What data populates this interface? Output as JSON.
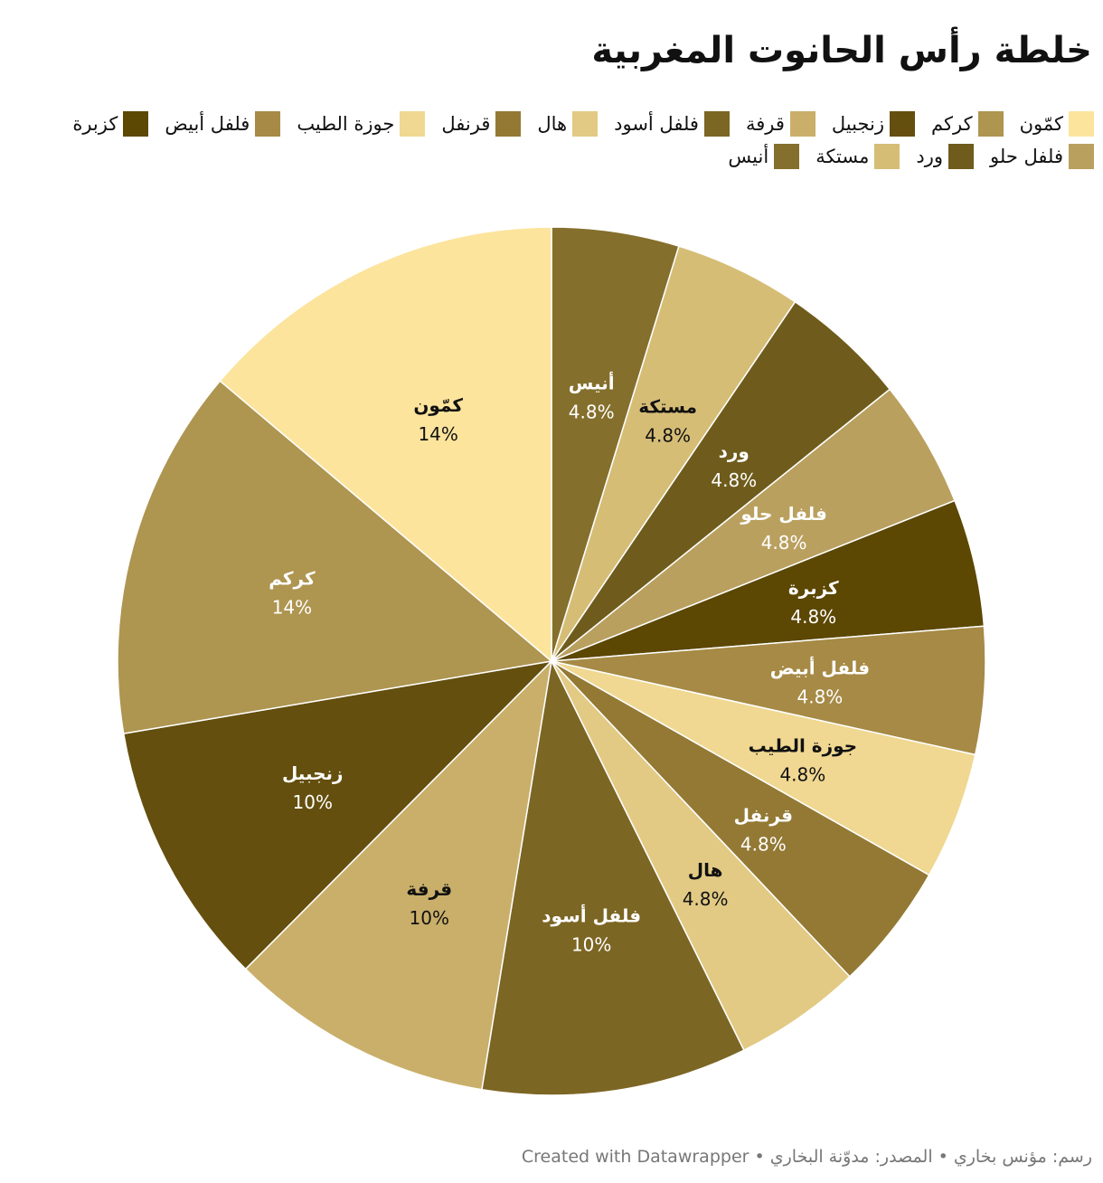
{
  "title": "خلطة رأس الحانوت المغربية",
  "footer": "رسم: مؤنس بخاري • المصدر: مدوّنة البخاري • Created with Datawrapper",
  "chart_data": {
    "type": "pie",
    "title": "خلطة رأس الحانوت المغربية",
    "legend_position": "top",
    "slices": [
      {
        "label": "أنيس",
        "value": 4.8,
        "display": "4.8%",
        "color": "#846f2c",
        "text_color": "#ffffff"
      },
      {
        "label": "مستكة",
        "value": 4.8,
        "display": "4.8%",
        "color": "#d6bd76",
        "text_color": "#111111"
      },
      {
        "label": "ورد",
        "value": 4.8,
        "display": "4.8%",
        "color": "#6f5c1c",
        "text_color": "#ffffff"
      },
      {
        "label": "فلفل حلو",
        "value": 4.8,
        "display": "4.8%",
        "color": "#baa05f",
        "text_color": "#ffffff"
      },
      {
        "label": "كزبرة",
        "value": 4.8,
        "display": "4.8%",
        "color": "#5c4703",
        "text_color": "#ffffff"
      },
      {
        "label": "فلفل أبيض",
        "value": 4.8,
        "display": "4.8%",
        "color": "#a68a45",
        "text_color": "#ffffff"
      },
      {
        "label": "جوزة الطيب",
        "value": 4.8,
        "display": "4.8%",
        "color": "#f0d892",
        "text_color": "#111111"
      },
      {
        "label": "قرنفل",
        "value": 4.8,
        "display": "4.8%",
        "color": "#937934",
        "text_color": "#ffffff"
      },
      {
        "label": "هال",
        "value": 4.8,
        "display": "4.8%",
        "color": "#e2ca84",
        "text_color": "#111111"
      },
      {
        "label": "فلفل أسود",
        "value": 10,
        "display": "10%",
        "color": "#7c6624",
        "text_color": "#ffffff"
      },
      {
        "label": "قرفة",
        "value": 10,
        "display": "10%",
        "color": "#c9af6a",
        "text_color": "#111111"
      },
      {
        "label": "زنجبيل",
        "value": 10,
        "display": "10%",
        "color": "#644f0e",
        "text_color": "#ffffff"
      },
      {
        "label": "كركم",
        "value": 14,
        "display": "14%",
        "color": "#ae9550",
        "text_color": "#ffffff"
      },
      {
        "label": "كمّون",
        "value": 14,
        "display": "14%",
        "color": "#fce49d",
        "text_color": "#111111"
      }
    ],
    "legend": [
      {
        "label": "كمّون",
        "color": "#fce49d"
      },
      {
        "label": "كركم",
        "color": "#ae9550"
      },
      {
        "label": "زنجبيل",
        "color": "#644f0e"
      },
      {
        "label": "قرفة",
        "color": "#c9af6a"
      },
      {
        "label": "فلفل أسود",
        "color": "#7c6624"
      },
      {
        "label": "هال",
        "color": "#e2ca84"
      },
      {
        "label": "قرنفل",
        "color": "#937934"
      },
      {
        "label": "جوزة الطيب",
        "color": "#f0d892"
      },
      {
        "label": "فلفل أبيض",
        "color": "#a68a45"
      },
      {
        "label": "كزبرة",
        "color": "#5c4703"
      },
      {
        "label": "فلفل حلو",
        "color": "#baa05f"
      },
      {
        "label": "ورد",
        "color": "#6f5c1c"
      },
      {
        "label": "مستكة",
        "color": "#d6bd76"
      },
      {
        "label": "أنيس",
        "color": "#846f2c"
      }
    ]
  }
}
